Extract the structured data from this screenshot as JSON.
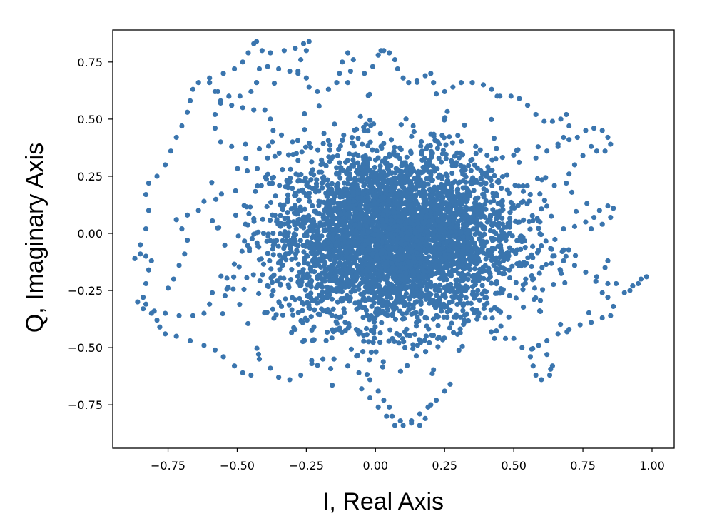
{
  "chart_data": {
    "type": "scatter",
    "title": "",
    "xlabel": "I, Real Axis",
    "ylabel": "Q, Imaginary Axis",
    "xlim": [
      -0.95,
      1.08
    ],
    "ylim": [
      -0.94,
      0.89
    ],
    "xticks": [
      -0.75,
      -0.5,
      -0.25,
      0.0,
      0.25,
      0.5,
      0.75,
      1.0
    ],
    "xtick_labels": [
      "−0.75",
      "−0.50",
      "−0.25",
      "0.00",
      "0.25",
      "0.50",
      "0.75",
      "1.00"
    ],
    "yticks": [
      -0.75,
      -0.5,
      -0.25,
      0.0,
      0.25,
      0.5,
      0.75
    ],
    "ytick_labels": [
      "−0.75",
      "−0.50",
      "−0.25",
      "0.00",
      "0.25",
      "0.50",
      "0.75"
    ],
    "grid": false,
    "legend": "none",
    "marker_color": "#3a75ae",
    "series": [
      {
        "points": [
          [
            -0.87,
            -0.11
          ],
          [
            -0.85,
            -0.09
          ],
          [
            -0.83,
            -0.1
          ],
          [
            -0.81,
            -0.12
          ],
          [
            -0.82,
            -0.16
          ],
          [
            -0.83,
            -0.22
          ],
          [
            -0.84,
            -0.28
          ],
          [
            -0.83,
            -0.31
          ],
          [
            -0.8,
            -0.34
          ],
          [
            -0.76,
            -0.35
          ],
          [
            -0.71,
            -0.36
          ],
          [
            -0.66,
            -0.36
          ],
          [
            -0.62,
            -0.35
          ],
          [
            -0.6,
            -0.31
          ],
          [
            -0.59,
            -0.26
          ],
          [
            -0.86,
            -0.3
          ],
          [
            -0.84,
            -0.33
          ],
          [
            -0.81,
            -0.35
          ],
          [
            -0.79,
            -0.38
          ],
          [
            -0.78,
            -0.41
          ],
          [
            -0.76,
            -0.44
          ],
          [
            -0.72,
            -0.45
          ],
          [
            -0.67,
            -0.47
          ],
          [
            -0.62,
            -0.49
          ],
          [
            -0.58,
            -0.51
          ],
          [
            -0.55,
            -0.54
          ],
          [
            -0.51,
            -0.58
          ],
          [
            -0.48,
            -0.61
          ],
          [
            -0.45,
            -0.62
          ],
          [
            -0.87,
            -0.11
          ],
          [
            -0.85,
            -0.05
          ],
          [
            -0.83,
            0.02
          ],
          [
            -0.82,
            0.1
          ],
          [
            -0.83,
            0.17
          ],
          [
            -0.82,
            0.22
          ],
          [
            -0.79,
            0.25
          ],
          [
            -0.76,
            0.3
          ],
          [
            -0.74,
            0.36
          ],
          [
            -0.72,
            0.42
          ],
          [
            -0.7,
            0.47
          ],
          [
            -0.68,
            0.53
          ],
          [
            -0.67,
            0.58
          ],
          [
            -0.66,
            0.63
          ],
          [
            -0.64,
            0.66
          ],
          [
            -0.6,
            0.68
          ],
          [
            -0.55,
            0.7
          ],
          [
            -0.51,
            0.72
          ],
          [
            -0.48,
            0.75
          ],
          [
            -0.46,
            0.79
          ],
          [
            -0.44,
            0.83
          ],
          [
            -0.43,
            0.84
          ],
          [
            -0.41,
            0.8
          ],
          [
            -0.38,
            0.79
          ],
          [
            -0.33,
            0.8
          ],
          [
            -0.29,
            0.81
          ],
          [
            -0.26,
            0.83
          ],
          [
            -0.24,
            0.84
          ],
          [
            -0.25,
            0.8
          ],
          [
            -0.27,
            0.76
          ],
          [
            -0.28,
            0.71
          ],
          [
            -0.6,
            0.66
          ],
          [
            -0.57,
            0.62
          ],
          [
            -0.53,
            0.6
          ],
          [
            -0.49,
            0.6
          ],
          [
            -0.45,
            0.62
          ],
          [
            -0.43,
            0.66
          ],
          [
            -0.42,
            0.72
          ],
          [
            -0.39,
            0.73
          ],
          [
            -0.35,
            0.72
          ],
          [
            -0.31,
            0.71
          ],
          [
            -0.28,
            0.7
          ],
          [
            -0.62,
            0.14
          ],
          [
            -0.64,
            0.1
          ],
          [
            -0.68,
            0.08
          ],
          [
            -0.72,
            0.06
          ],
          [
            -0.7,
            0.02
          ],
          [
            -0.68,
            -0.03
          ],
          [
            -0.69,
            -0.09
          ],
          [
            -0.71,
            -0.14
          ],
          [
            -0.73,
            -0.2
          ],
          [
            -0.75,
            -0.24
          ],
          [
            -0.39,
            0.33
          ],
          [
            -0.42,
            0.37
          ],
          [
            -0.47,
            0.39
          ],
          [
            -0.52,
            0.38
          ],
          [
            -0.56,
            0.4
          ],
          [
            -0.58,
            0.46
          ],
          [
            -0.58,
            0.52
          ],
          [
            -0.56,
            0.57
          ],
          [
            -0.53,
            0.6
          ],
          [
            -0.42,
            -0.55
          ],
          [
            -0.38,
            -0.59
          ],
          [
            -0.35,
            -0.63
          ],
          [
            -0.31,
            -0.64
          ],
          [
            -0.27,
            -0.62
          ],
          [
            -0.23,
            -0.57
          ],
          [
            -0.19,
            -0.55
          ],
          [
            -0.15,
            -0.55
          ],
          [
            -0.1,
            -0.58
          ],
          [
            -0.06,
            -0.61
          ],
          [
            -0.02,
            -0.64
          ],
          [
            0.01,
            -0.69
          ],
          [
            0.03,
            -0.73
          ],
          [
            0.05,
            -0.76
          ],
          [
            0.06,
            -0.8
          ],
          [
            0.09,
            -0.82
          ],
          [
            0.13,
            -0.82
          ],
          [
            0.16,
            -0.79
          ],
          [
            0.19,
            -0.76
          ],
          [
            0.22,
            -0.73
          ],
          [
            0.25,
            -0.69
          ],
          [
            0.27,
            -0.66
          ],
          [
            -0.05,
            -0.68
          ],
          [
            -0.02,
            -0.72
          ],
          [
            0.01,
            -0.76
          ],
          [
            0.04,
            -0.8
          ],
          [
            0.07,
            -0.84
          ],
          [
            0.1,
            -0.84
          ],
          [
            0.13,
            -0.83
          ],
          [
            0.16,
            -0.84
          ],
          [
            0.18,
            -0.81
          ],
          [
            0.2,
            -0.75
          ],
          [
            0.43,
            -0.46
          ],
          [
            0.47,
            -0.46
          ],
          [
            0.5,
            -0.46
          ],
          [
            0.53,
            -0.5
          ],
          [
            0.56,
            -0.54
          ],
          [
            0.57,
            -0.58
          ],
          [
            0.58,
            -0.62
          ],
          [
            0.6,
            -0.64
          ],
          [
            0.63,
            -0.62
          ],
          [
            0.64,
            -0.58
          ],
          [
            0.62,
            -0.53
          ],
          [
            0.59,
            -0.49
          ],
          [
            0.62,
            -0.47
          ],
          [
            0.66,
            -0.44
          ],
          [
            0.7,
            -0.42
          ],
          [
            0.74,
            -0.4
          ],
          [
            0.78,
            -0.39
          ],
          [
            0.82,
            -0.37
          ],
          [
            0.85,
            -0.36
          ],
          [
            0.86,
            -0.32
          ],
          [
            0.84,
            -0.28
          ],
          [
            0.82,
            -0.26
          ],
          [
            0.84,
            -0.22
          ],
          [
            0.87,
            -0.22
          ],
          [
            0.9,
            -0.26
          ],
          [
            0.93,
            -0.23
          ],
          [
            0.96,
            -0.2
          ],
          [
            0.98,
            -0.19
          ],
          [
            0.95,
            -0.22
          ],
          [
            0.92,
            -0.25
          ],
          [
            0.68,
            -0.12
          ],
          [
            0.72,
            -0.14
          ],
          [
            0.76,
            -0.17
          ],
          [
            0.8,
            -0.19
          ],
          [
            0.83,
            -0.15
          ],
          [
            0.84,
            -0.12
          ],
          [
            0.68,
            0.02
          ],
          [
            0.72,
            0.03
          ],
          [
            0.76,
            0.05
          ],
          [
            0.79,
            0.07
          ],
          [
            0.81,
            0.1
          ],
          [
            0.84,
            0.12
          ],
          [
            0.86,
            0.11
          ],
          [
            0.85,
            0.07
          ],
          [
            0.82,
            0.04
          ],
          [
            0.78,
            0.02
          ],
          [
            0.58,
            0.33
          ],
          [
            0.62,
            0.36
          ],
          [
            0.66,
            0.39
          ],
          [
            0.7,
            0.41
          ],
          [
            0.73,
            0.42
          ],
          [
            0.76,
            0.45
          ],
          [
            0.79,
            0.46
          ],
          [
            0.82,
            0.45
          ],
          [
            0.84,
            0.42
          ],
          [
            0.85,
            0.39
          ],
          [
            0.83,
            0.36
          ],
          [
            0.8,
            0.36
          ],
          [
            0.78,
            0.38
          ],
          [
            0.75,
            0.34
          ],
          [
            0.72,
            0.3
          ],
          [
            0.7,
            0.26
          ],
          [
            0.69,
            0.22
          ],
          [
            0.71,
            0.18
          ],
          [
            0.45,
            0.6
          ],
          [
            0.49,
            0.6
          ],
          [
            0.52,
            0.59
          ],
          [
            0.55,
            0.56
          ],
          [
            0.58,
            0.52
          ],
          [
            0.61,
            0.49
          ],
          [
            0.64,
            0.49
          ],
          [
            0.67,
            0.5
          ],
          [
            0.69,
            0.52
          ],
          [
            0.7,
            0.47
          ],
          [
            0.68,
            0.42
          ],
          [
            0.66,
            0.38
          ],
          [
            0.02,
            0.8
          ],
          [
            0.05,
            0.79
          ],
          [
            0.07,
            0.76
          ],
          [
            0.08,
            0.72
          ],
          [
            0.1,
            0.68
          ],
          [
            0.12,
            0.66
          ],
          [
            0.15,
            0.67
          ],
          [
            0.18,
            0.69
          ],
          [
            0.2,
            0.7
          ],
          [
            0.21,
            0.66
          ],
          [
            0.22,
            0.61
          ],
          [
            0.25,
            0.62
          ],
          [
            0.28,
            0.64
          ],
          [
            0.31,
            0.66
          ],
          [
            0.35,
            0.66
          ],
          [
            0.39,
            0.65
          ],
          [
            0.42,
            0.63
          ],
          [
            0.44,
            0.6
          ],
          [
            -0.1,
            0.66
          ],
          [
            -0.09,
            0.71
          ],
          [
            -0.08,
            0.76
          ],
          [
            -0.1,
            0.79
          ],
          [
            -0.12,
            0.75
          ],
          [
            -0.13,
            0.7
          ],
          [
            -0.14,
            0.66
          ],
          [
            -0.17,
            0.63
          ],
          [
            -0.21,
            0.62
          ],
          [
            -0.24,
            0.64
          ],
          [
            -0.25,
            0.68
          ],
          [
            -0.04,
            0.7
          ],
          [
            -0.01,
            0.73
          ],
          [
            0.01,
            0.78
          ],
          [
            0.03,
            0.8
          ],
          [
            -0.3,
            0.4
          ],
          [
            -0.34,
            0.43
          ],
          [
            -0.37,
            0.45
          ],
          [
            -0.38,
            0.5
          ],
          [
            -0.4,
            0.54
          ],
          [
            -0.44,
            0.54
          ],
          [
            -0.48,
            0.55
          ],
          [
            -0.52,
            0.56
          ],
          [
            -0.56,
            0.58
          ],
          [
            -0.58,
            0.62
          ]
        ]
      }
    ]
  }
}
